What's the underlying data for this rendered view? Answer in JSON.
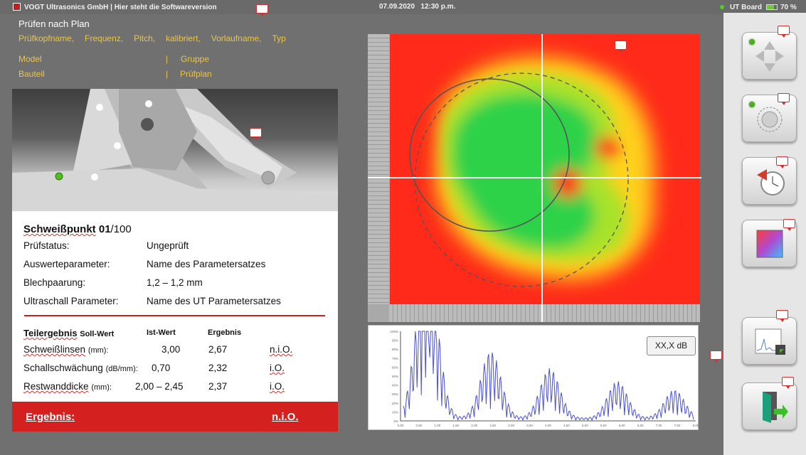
{
  "titlebar": {
    "app_title": "VOGT Ultrasonics GmbH | Hier steht die Softwareversion",
    "date": "07.09.2020",
    "time": "12:30 p.m.",
    "board": "UT Board",
    "battery": "70 %"
  },
  "header": {
    "title": "Prüfen nach Plan",
    "fields": [
      "Prüfkopfname,",
      "Frequenz,",
      "Pitch,",
      "kalibriert,",
      "Vorlaufname,",
      "Typ"
    ],
    "model": "Model",
    "group": "Gruppe",
    "part": "Bauteil",
    "plan": "Prüfplan",
    "sep": "|"
  },
  "card": {
    "spot_label": "Schweißpunkt",
    "spot_num": "01",
    "spot_total": "/100",
    "rows": [
      {
        "label": "Prüfstatus:",
        "value": "Ungeprüft"
      },
      {
        "label": "Auswerteparameter:",
        "value": "Name des Parametersatzes"
      },
      {
        "label": "Blechpaarung:",
        "value": "1,2 – 1,2 mm"
      },
      {
        "label": "Ultraschall Parameter:",
        "value": "Name des UT Parametersatzes"
      }
    ],
    "table_headers": {
      "partial": "Teilergebnis",
      "soll": "Soll-Wert",
      "ist": "Ist-Wert",
      "ergebnis": "Ergebnis"
    },
    "table_rows": [
      {
        "name": "Schweißlinsen",
        "unit": "(mm):",
        "soll": "3,00",
        "ist": "2,67",
        "result": "n.i.O."
      },
      {
        "name": "Schallschwächung",
        "unit": "(dB/mm):",
        "soll": "0,70",
        "ist": "2,32",
        "result": "i.O."
      },
      {
        "name": "Restwanddicke",
        "unit": "(mm):",
        "soll": "2,00 – 2,45",
        "ist": "2,37",
        "result": "i.O."
      }
    ],
    "result_label": "Ergebnis:",
    "result_value": "n.i.O."
  },
  "ascan": {
    "db_label": "XX,X dB",
    "ylabels": [
      "100%",
      "90%",
      "80%",
      "70%",
      "60%",
      "50%",
      "40%",
      "30%",
      "20%",
      "10%",
      "0%"
    ],
    "xlabels": [
      "0,00",
      "0,25",
      "0,50",
      "0,75",
      "1,00",
      "1,25",
      "1,50",
      "1,75",
      "2,00",
      "2,25",
      "2,50",
      "2,75",
      "3,00",
      "3,25",
      "3,50",
      "3,75",
      "4,00",
      "4,25",
      "4,50",
      "4,75",
      "5,00",
      "5,25",
      "5,50",
      "5,75",
      "6,00",
      "6,25",
      "6,50",
      "6,75",
      "7,00",
      "7,25",
      "7,50",
      "7,75",
      "8,00"
    ]
  },
  "sidebar": {
    "buttons": [
      "move-button",
      "focus-button",
      "history-button",
      "color-palette-button",
      "save-scan-button",
      "exit-button"
    ]
  },
  "colors": {
    "accent_red": "#d52020",
    "label_yellow": "#e9c54a",
    "ok_green": "#4caf22"
  }
}
